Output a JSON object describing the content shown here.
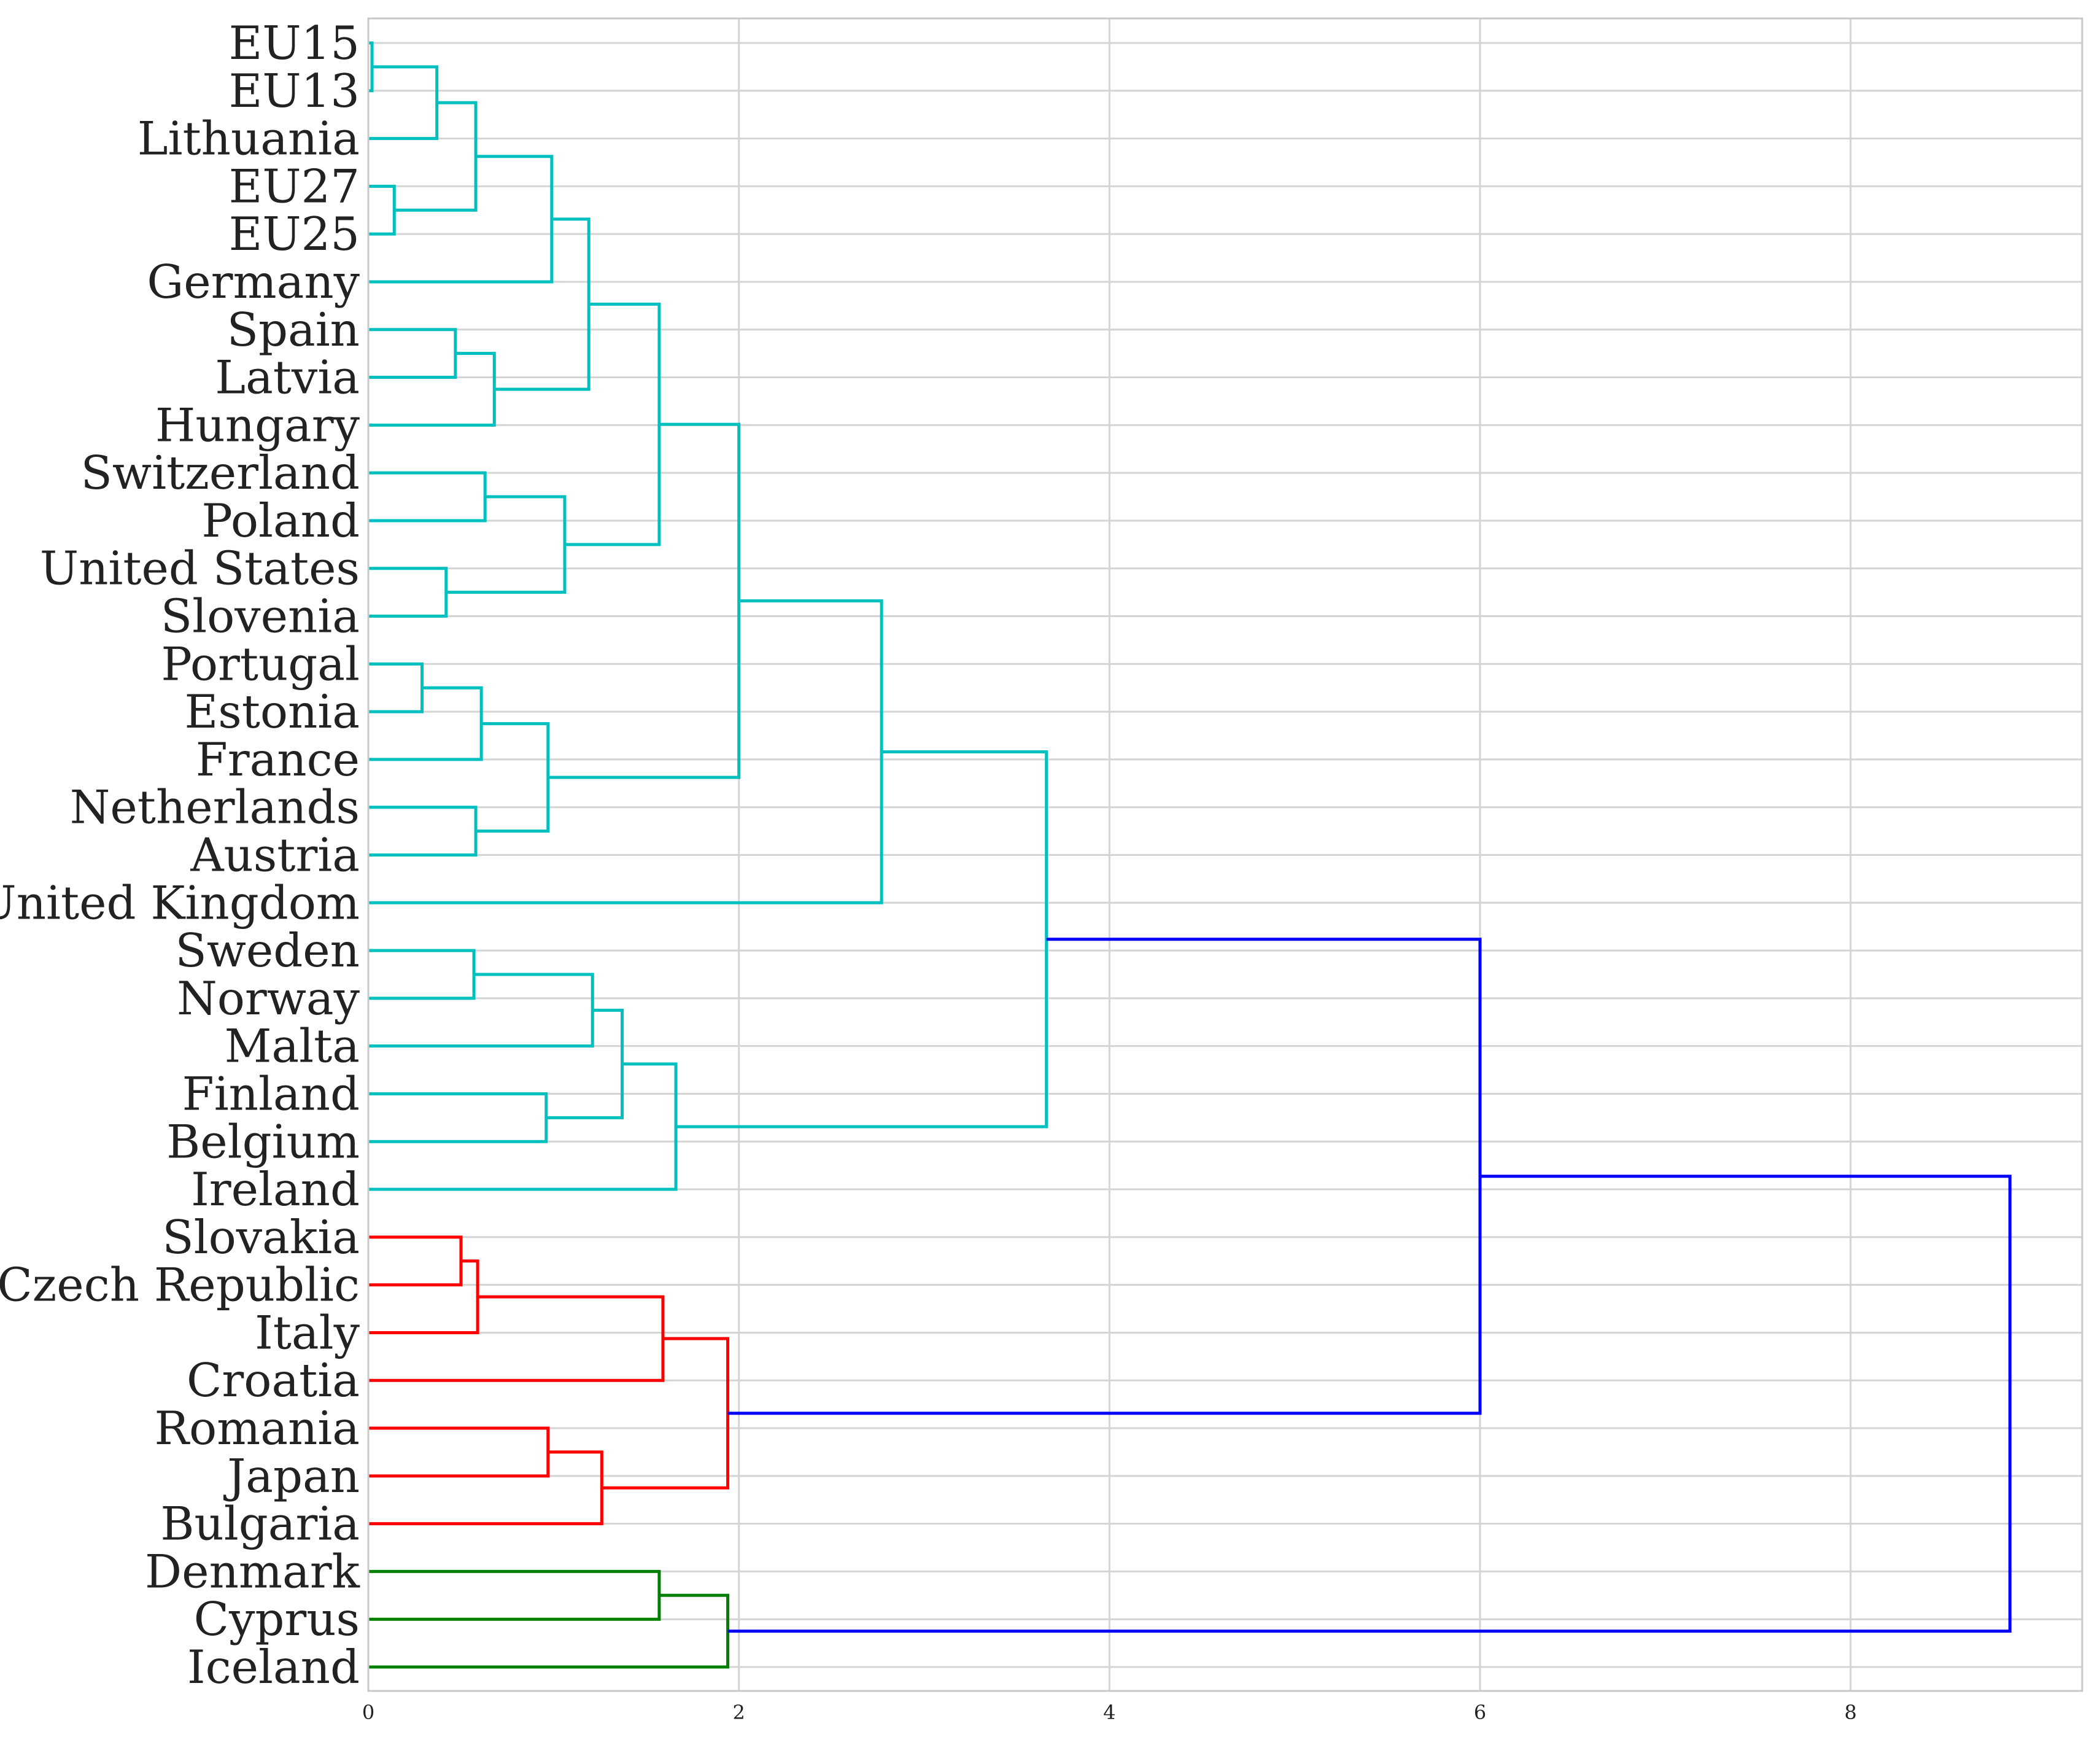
{
  "chart_data": {
    "type": "dendrogram",
    "orientation": "horizontal-left",
    "leaves": [
      "EU15",
      "EU13",
      "Lithuania",
      "EU27",
      "EU25",
      "Germany",
      "Spain",
      "Latvia",
      "Hungary",
      "Switzerland",
      "Poland",
      "United States",
      "Slovenia",
      "Portugal",
      "Estonia",
      "France",
      "Netherlands",
      "Austria",
      "United Kingdom",
      "Sweden",
      "Norway",
      "Malta",
      "Finland",
      "Belgium",
      "Ireland",
      "Slovakia",
      "Czech Republic",
      "Italy",
      "Croatia",
      "Romania",
      "Japan",
      "Bulgaria",
      "Denmark",
      "Cyprus",
      "Iceland"
    ],
    "merges": [
      {
        "a": "EU15",
        "b": "EU13",
        "height": 0.02,
        "color": "c1"
      },
      {
        "a": 0,
        "b": "Lithuania",
        "height": 0.37,
        "color": "c1"
      },
      {
        "a": "EU27",
        "b": "EU25",
        "height": 0.14,
        "color": "c1"
      },
      {
        "a": 1,
        "b": 2,
        "height": 0.58,
        "color": "c1"
      },
      {
        "a": 3,
        "b": "Germany",
        "height": 0.99,
        "color": "c1"
      },
      {
        "a": "Spain",
        "b": "Latvia",
        "height": 0.47,
        "color": "c1"
      },
      {
        "a": 5,
        "b": "Hungary",
        "height": 0.68,
        "color": "c1"
      },
      {
        "a": 4,
        "b": 6,
        "height": 1.19,
        "color": "c1"
      },
      {
        "a": "Switzerland",
        "b": "Poland",
        "height": 0.63,
        "color": "c1"
      },
      {
        "a": "United States",
        "b": "Slovenia",
        "height": 0.42,
        "color": "c1"
      },
      {
        "a": 8,
        "b": 9,
        "height": 1.06,
        "color": "c1"
      },
      {
        "a": 7,
        "b": 10,
        "height": 1.57,
        "color": "c1"
      },
      {
        "a": "Portugal",
        "b": "Estonia",
        "height": 0.29,
        "color": "c1"
      },
      {
        "a": 12,
        "b": "France",
        "height": 0.61,
        "color": "c1"
      },
      {
        "a": "Netherlands",
        "b": "Austria",
        "height": 0.58,
        "color": "c1"
      },
      {
        "a": 13,
        "b": 14,
        "height": 0.97,
        "color": "c1"
      },
      {
        "a": 11,
        "b": 15,
        "height": 2.0,
        "color": "c1"
      },
      {
        "a": 16,
        "b": "United Kingdom",
        "height": 2.77,
        "color": "c1"
      },
      {
        "a": "Sweden",
        "b": "Norway",
        "height": 0.57,
        "color": "c1"
      },
      {
        "a": 18,
        "b": "Malta",
        "height": 1.21,
        "color": "c1"
      },
      {
        "a": "Finland",
        "b": "Belgium",
        "height": 0.96,
        "color": "c1"
      },
      {
        "a": 19,
        "b": 20,
        "height": 1.37,
        "color": "c1"
      },
      {
        "a": 21,
        "b": "Ireland",
        "height": 1.66,
        "color": "c1"
      },
      {
        "a": 17,
        "b": 22,
        "height": 3.66,
        "color": "c1"
      },
      {
        "a": "Slovakia",
        "b": "Czech Republic",
        "height": 0.5,
        "color": "c2"
      },
      {
        "a": 24,
        "b": "Italy",
        "height": 0.59,
        "color": "c2"
      },
      {
        "a": 25,
        "b": "Croatia",
        "height": 1.59,
        "color": "c2"
      },
      {
        "a": "Romania",
        "b": "Japan",
        "height": 0.97,
        "color": "c2"
      },
      {
        "a": 27,
        "b": "Bulgaria",
        "height": 1.26,
        "color": "c2"
      },
      {
        "a": 26,
        "b": 28,
        "height": 1.94,
        "color": "c2"
      },
      {
        "a": 23,
        "b": 29,
        "height": 6.0,
        "color": "above"
      },
      {
        "a": "Denmark",
        "b": "Cyprus",
        "height": 1.57,
        "color": "c3"
      },
      {
        "a": 31,
        "b": "Iceland",
        "height": 1.94,
        "color": "c3"
      },
      {
        "a": 30,
        "b": 32,
        "height": 8.86,
        "color": "above"
      }
    ],
    "xlim": [
      0,
      9.25
    ],
    "xticks": [
      0,
      2,
      4,
      6,
      8
    ],
    "xtick_labels": [
      "0",
      "2",
      "4",
      "6",
      "8"
    ],
    "grid": true,
    "colors": {
      "c1": "#00bfbf",
      "c2": "#ff0000",
      "c3": "#008000",
      "above": "#0000ff",
      "grid": "#d4d4d4",
      "frame": "#c8c8c8"
    }
  }
}
